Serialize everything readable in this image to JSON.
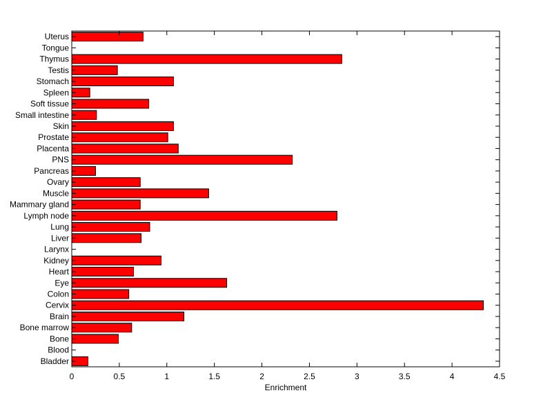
{
  "chart_data": {
    "type": "bar",
    "orientation": "horizontal",
    "xlabel": "Enrichment",
    "ylabel": "",
    "title": "",
    "xlim": [
      0,
      4.5
    ],
    "xticks": [
      "0",
      "0.5",
      "1",
      "1.5",
      "2",
      "2.5",
      "3",
      "3.5",
      "4",
      "4.5"
    ],
    "grid": false,
    "bar_color": "#ff0000",
    "categories": [
      "Bladder",
      "Blood",
      "Bone",
      "Bone marrow",
      "Brain",
      "Cervix",
      "Colon",
      "Eye",
      "Heart",
      "Kidney",
      "Larynx",
      "Liver",
      "Lung",
      "Lymph node",
      "Mammary gland",
      "Muscle",
      "Ovary",
      "Pancreas",
      "PNS",
      "Placenta",
      "Prostate",
      "Skin",
      "Small intestine",
      "Soft tissue",
      "Spleen",
      "Stomach",
      "Testis",
      "Thymus",
      "Tongue",
      "Uterus"
    ],
    "values": [
      0.17,
      0,
      0.49,
      0.63,
      1.18,
      4.33,
      0.6,
      1.63,
      0.65,
      0.94,
      0,
      0.73,
      0.82,
      2.79,
      0.72,
      1.44,
      0.72,
      0.25,
      2.32,
      1.12,
      1.01,
      1.07,
      0.26,
      0.81,
      0.19,
      1.07,
      0.48,
      2.84,
      0,
      0.75
    ]
  }
}
